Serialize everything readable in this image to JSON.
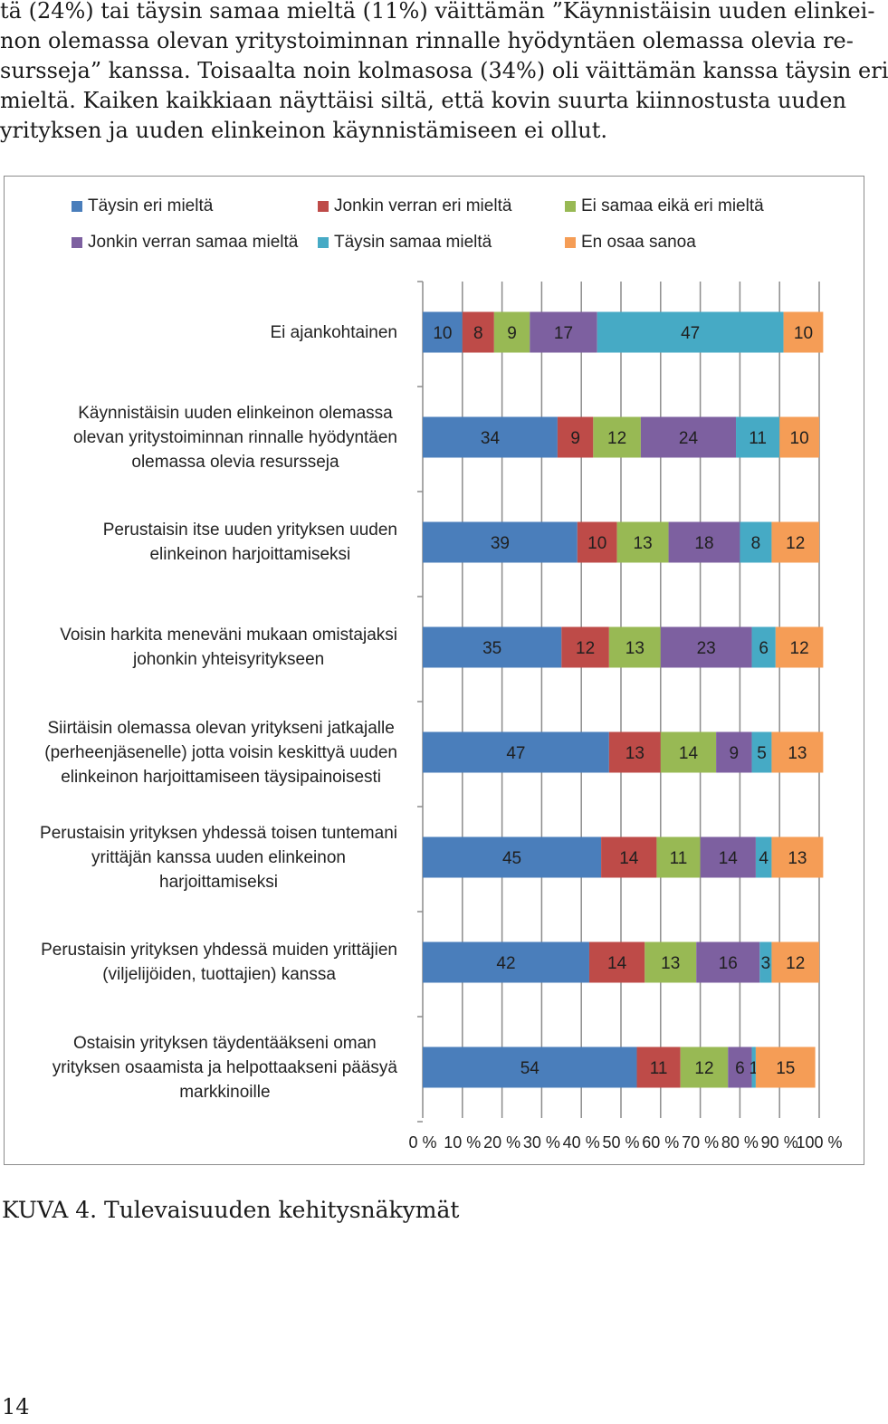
{
  "paragraph": {
    "lines": [
      "tä (24%) tai täysin samaa mieltä (11%) väittämän ”Käynnistäisin uuden elinkei-",
      "non olemassa olevan yritystoiminnan rinnalle hyödyntäen olemassa olevia re-",
      "sursseja” kanssa. Toisaalta noin kolmasosa (34%) oli väittämän kanssa täysin eri",
      "mieltä. Kaiken kaikkiaan näyttäisi siltä, että kovin suurta kiinnostusta uuden",
      "yrityksen ja uuden elinkeinon käynnistämiseen ei ollut."
    ]
  },
  "chart_data": {
    "type": "bar",
    "orientation": "horizontal",
    "stacked": "percent",
    "legend_position": "top",
    "xlim": [
      0,
      100
    ],
    "x_ticks": [
      "0 %",
      "10 %",
      "20 %",
      "30 %",
      "40 %",
      "50 %",
      "60 %",
      "70 %",
      "80 %",
      "90 %",
      "100 %"
    ],
    "grid": true,
    "categories": [
      "Ei ajankohtainen",
      "Käynnistäisin uuden elinkeinon olemassa\nolevan yritystoiminnan rinnalle hyödyntäen\nolemassa olevia resursseja",
      "Perustaisin itse uuden yrityksen uuden\nelinkeinon harjoittamiseksi",
      "Voisin harkita meneväni mukaan omistajaksi\njohonkin yhteisyritykseen",
      "Siirtäisin olemassa olevan yritykseni jatkajalle\n(perheenjäsenelle) jotta voisin keskittyä uuden\nelinkeinon harjoittamiseen täysipainoisesti",
      "Perustaisin yrityksen yhdessä toisen tuntemani\nyrittäjän kanssa uuden elinkeinon\nharjoittamiseksi",
      "Perustaisin yrityksen yhdessä muiden yrittäjien\n(viljelijöiden, tuottajien) kanssa",
      "Ostaisin yrityksen täydentääkseni oman\nyrityksen osaamista ja helpottaakseni pääsyä\nmarkkinoille"
    ],
    "series": [
      {
        "name": "Täysin eri mieltä",
        "color": "#4a7ebb",
        "values": [
          10,
          34,
          39,
          35,
          47,
          45,
          42,
          54
        ]
      },
      {
        "name": "Jonkin verran eri mieltä",
        "color": "#be4b48",
        "values": [
          8,
          9,
          10,
          12,
          13,
          14,
          14,
          11
        ]
      },
      {
        "name": "Ei samaa eikä eri mieltä",
        "color": "#98b954",
        "values": [
          9,
          12,
          13,
          13,
          14,
          11,
          13,
          12
        ]
      },
      {
        "name": "Jonkin verran samaa mieltä",
        "color": "#7d60a0",
        "values": [
          17,
          24,
          18,
          23,
          9,
          14,
          16,
          6
        ]
      },
      {
        "name": "Täysin samaa mieltä",
        "color": "#46aac5",
        "values": [
          47,
          11,
          8,
          6,
          5,
          4,
          3,
          1
        ]
      },
      {
        "name": "En osaa sanoa",
        "color": "#f59d56",
        "values": [
          10,
          10,
          12,
          12,
          13,
          13,
          12,
          15
        ]
      }
    ]
  },
  "caption": "KUVA 4. Tulevaisuuden kehitysnäkymät",
  "page_number": "14"
}
